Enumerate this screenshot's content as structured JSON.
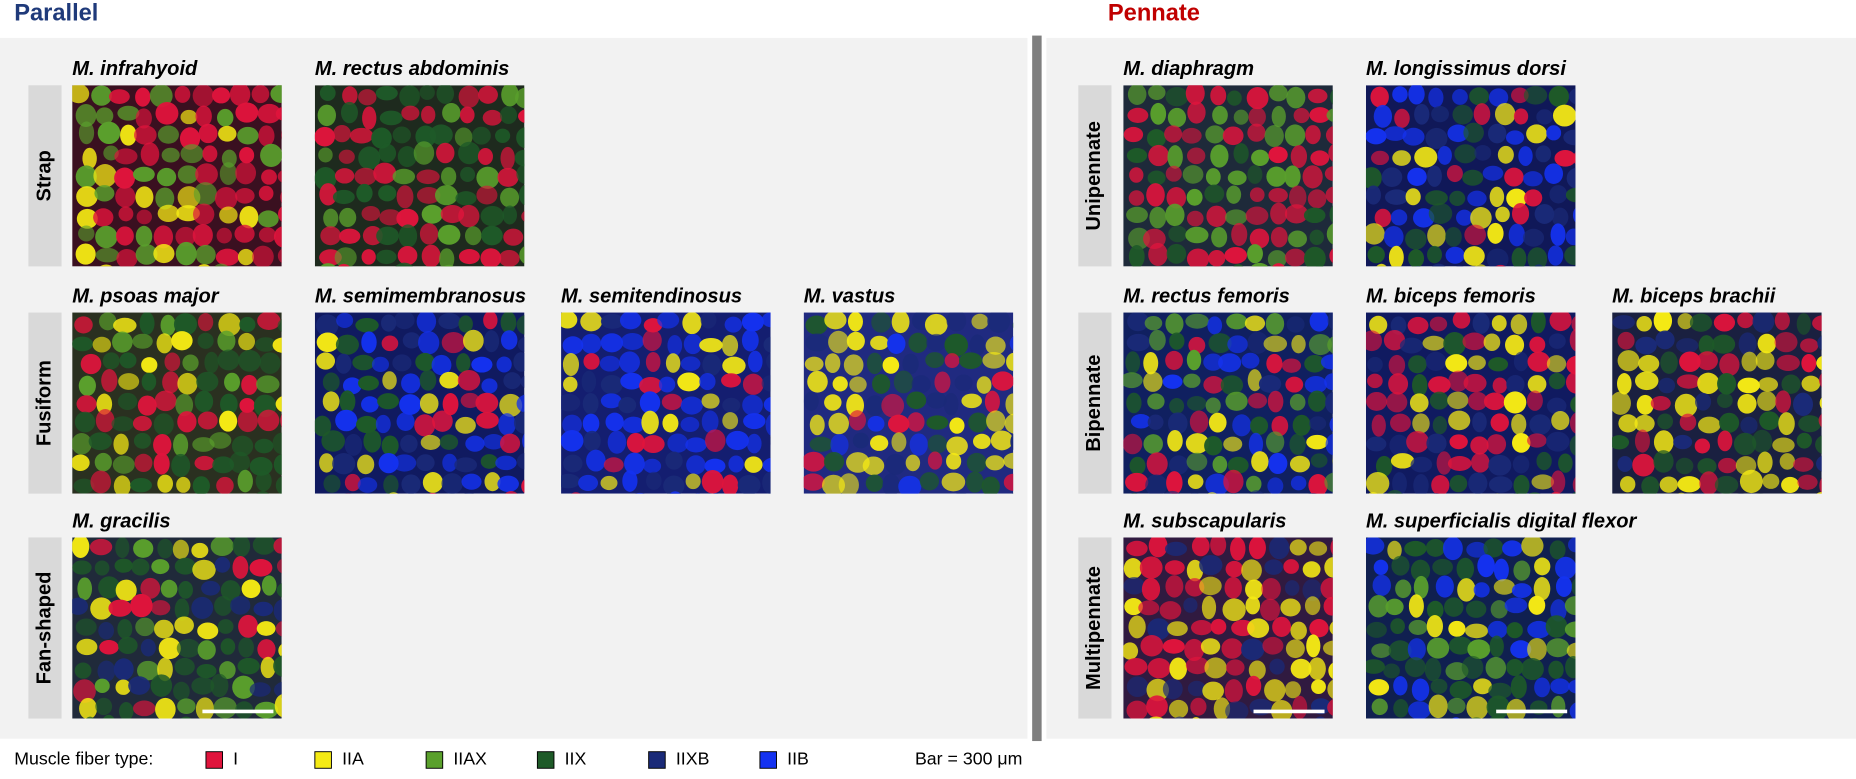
{
  "sections": [
    {
      "title": "Parallel",
      "color": "#1f3a7a",
      "groups": [
        {
          "label": "Strap",
          "muscles": [
            "M. infrahyoid",
            "M. rectus abdominis"
          ]
        },
        {
          "label": "Fusiform",
          "muscles": [
            "M. psoas major",
            "M. semimembranosus",
            "M. semitendinosus",
            "M. vastus"
          ]
        },
        {
          "label": "Fan-shaped",
          "muscles": [
            "M. gracilis"
          ]
        }
      ]
    },
    {
      "title": "Pennate",
      "color": "#c00000",
      "groups": [
        {
          "label": "Unipennate",
          "muscles": [
            "M. diaphragm",
            "M. longissimus dorsi"
          ]
        },
        {
          "label": "Bipennate",
          "muscles": [
            "M. rectus femoris",
            "M. biceps femoris",
            "M. biceps brachii"
          ]
        },
        {
          "label": "Multipennate",
          "muscles": [
            "M. subscapularis",
            "M. superficialis digital flexor"
          ]
        }
      ]
    }
  ],
  "legend": {
    "title": "Muscle fiber type:",
    "items": [
      {
        "label": "I",
        "color": "#e0143c"
      },
      {
        "label": "IIA",
        "color": "#f5ea14"
      },
      {
        "label": "IIAX",
        "color": "#5aa02c"
      },
      {
        "label": "IIX",
        "color": "#1e5a28"
      },
      {
        "label": "IIXB",
        "color": "#1a2a78"
      },
      {
        "label": "IIB",
        "color": "#1432f0"
      }
    ]
  },
  "scale_note": "Bar = 300 μm"
}
